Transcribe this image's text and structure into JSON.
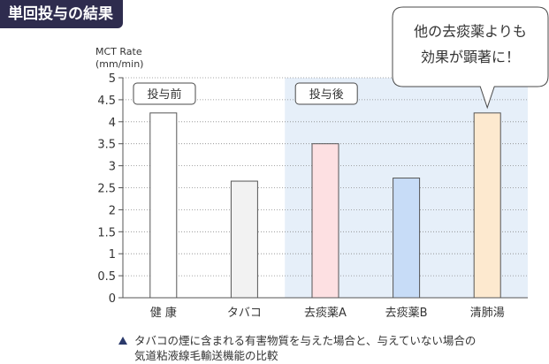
{
  "header": {
    "title": "単回投与の結果"
  },
  "chart_data": {
    "type": "bar",
    "ylabel": "MCT Rate",
    "yunit": "(mm/min)",
    "ylim": [
      0,
      5
    ],
    "yticks": [
      "0",
      "0.5",
      "1",
      "1.5",
      "2",
      "2.5",
      "3",
      "3.5",
      "4",
      "4.5",
      "5"
    ],
    "grid": "horizontal dotted",
    "categories": [
      "健 康",
      "タバコ",
      "去痰薬A",
      "去痰薬B",
      "清肺湯"
    ],
    "values": [
      4.2,
      2.65,
      3.5,
      2.72,
      4.2
    ],
    "colors": [
      "#ffffff",
      "#f2f2f2",
      "#fde0e2",
      "#c7dcf7",
      "#fde9cf"
    ],
    "phases": [
      {
        "label": "投与前",
        "categories": [
          "健 康",
          "タバコ"
        ],
        "shaded": false
      },
      {
        "label": "投与後",
        "categories": [
          "去痰薬A",
          "去痰薬B",
          "清肺湯"
        ],
        "shaded": true,
        "shade_color": "#e6eff9"
      }
    ],
    "callout": {
      "lines": [
        "他の去痰薬よりも",
        "効果が顕著に！"
      ],
      "target": "清肺湯"
    }
  },
  "note": {
    "line1": "タバコの煙に含まれる有害物質を与えた場合と、与えていない場合の",
    "line2": "気道粘液線毛輸送機能の比較"
  }
}
